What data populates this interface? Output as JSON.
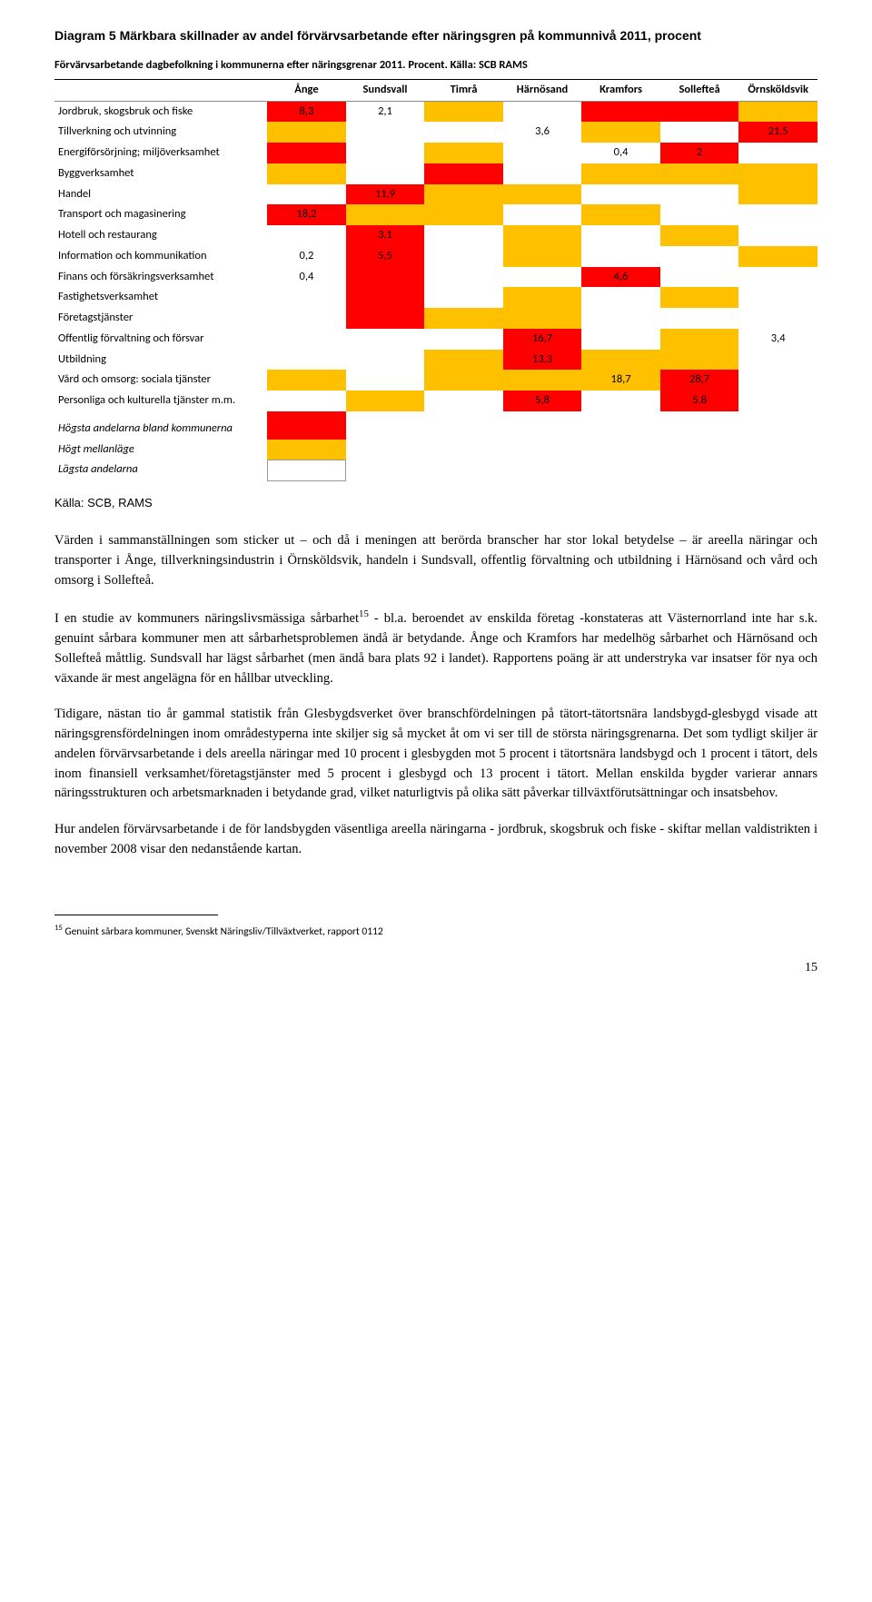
{
  "diagram": {
    "title": "Diagram 5 Märkbara skillnader av andel förvärvsarbetande efter näringsgren på kommunnivå 2011, procent",
    "caption": "Förvärvsarbetande dagbefolkning i kommunerna efter näringsgrenar 2011. Procent. Källa: SCB RAMS",
    "columns": [
      "",
      "Ånge",
      "Sundsvall",
      "Timrå",
      "Härnösand",
      "Kramfors",
      "Sollefteå",
      "Örnsköldsvik"
    ],
    "colors": {
      "red": "#ff0000",
      "orange": "#ffc000",
      "white": "#ffffff"
    },
    "rows": [
      {
        "label": "Jordbruk, skogsbruk och fiske",
        "cells": [
          {
            "v": "8,3",
            "c": "red"
          },
          {
            "v": "2,1",
            "c": "white"
          },
          {
            "v": "",
            "c": "orange"
          },
          {
            "v": "",
            "c": "white"
          },
          {
            "v": "",
            "c": "red"
          },
          {
            "v": "",
            "c": "red"
          },
          {
            "v": "",
            "c": "orange"
          }
        ]
      },
      {
        "label": "Tillverkning och utvinning",
        "cells": [
          {
            "v": "",
            "c": "orange"
          },
          {
            "v": "",
            "c": "white"
          },
          {
            "v": "",
            "c": "white"
          },
          {
            "v": "3,6",
            "c": "white"
          },
          {
            "v": "",
            "c": "orange"
          },
          {
            "v": "",
            "c": "white"
          },
          {
            "v": "21,5",
            "c": "red"
          }
        ]
      },
      {
        "label": "Energiförsörjning; miljöverksamhet",
        "cells": [
          {
            "v": "",
            "c": "red"
          },
          {
            "v": "",
            "c": "white"
          },
          {
            "v": "",
            "c": "orange"
          },
          {
            "v": "",
            "c": "white"
          },
          {
            "v": "0,4",
            "c": "white"
          },
          {
            "v": "2",
            "c": "red"
          },
          {
            "v": "",
            "c": "white"
          }
        ]
      },
      {
        "label": "Byggverksamhet",
        "cells": [
          {
            "v": "",
            "c": "orange"
          },
          {
            "v": "",
            "c": "white"
          },
          {
            "v": "",
            "c": "red"
          },
          {
            "v": "",
            "c": "white"
          },
          {
            "v": "",
            "c": "orange"
          },
          {
            "v": "",
            "c": "orange"
          },
          {
            "v": "",
            "c": "orange"
          }
        ]
      },
      {
        "label": "Handel",
        "cells": [
          {
            "v": "",
            "c": "white"
          },
          {
            "v": "11,9",
            "c": "red"
          },
          {
            "v": "",
            "c": "orange"
          },
          {
            "v": "",
            "c": "orange"
          },
          {
            "v": "",
            "c": "white"
          },
          {
            "v": "",
            "c": "white"
          },
          {
            "v": "",
            "c": "orange"
          }
        ]
      },
      {
        "label": "Transport och magasinering",
        "cells": [
          {
            "v": "18,2",
            "c": "red"
          },
          {
            "v": "",
            "c": "orange"
          },
          {
            "v": "",
            "c": "orange"
          },
          {
            "v": "",
            "c": "white"
          },
          {
            "v": "",
            "c": "orange"
          },
          {
            "v": "",
            "c": "white"
          },
          {
            "v": "",
            "c": "white"
          }
        ]
      },
      {
        "label": "Hotell och restaurang",
        "cells": [
          {
            "v": "",
            "c": "white"
          },
          {
            "v": "3,1",
            "c": "red"
          },
          {
            "v": "",
            "c": "white"
          },
          {
            "v": "",
            "c": "orange"
          },
          {
            "v": "",
            "c": "white"
          },
          {
            "v": "",
            "c": "orange"
          },
          {
            "v": "",
            "c": "white"
          }
        ]
      },
      {
        "label": "Information och kommunikation",
        "cells": [
          {
            "v": "0,2",
            "c": "white"
          },
          {
            "v": "5,5",
            "c": "red"
          },
          {
            "v": "",
            "c": "white"
          },
          {
            "v": "",
            "c": "orange"
          },
          {
            "v": "",
            "c": "white"
          },
          {
            "v": "",
            "c": "white"
          },
          {
            "v": "",
            "c": "orange"
          }
        ]
      },
      {
        "label": "Finans och försäkringsverksamhet",
        "cells": [
          {
            "v": "0,4",
            "c": "white"
          },
          {
            "v": "",
            "c": "red"
          },
          {
            "v": "",
            "c": "white"
          },
          {
            "v": "",
            "c": "white"
          },
          {
            "v": "4,6",
            "c": "red"
          },
          {
            "v": "",
            "c": "white"
          },
          {
            "v": "",
            "c": "white"
          }
        ]
      },
      {
        "label": "Fastighetsverksamhet",
        "cells": [
          {
            "v": "",
            "c": "white"
          },
          {
            "v": "",
            "c": "red"
          },
          {
            "v": "",
            "c": "white"
          },
          {
            "v": "",
            "c": "orange"
          },
          {
            "v": "",
            "c": "white"
          },
          {
            "v": "",
            "c": "orange"
          },
          {
            "v": "",
            "c": "white"
          }
        ]
      },
      {
        "label": "Företagstjänster",
        "cells": [
          {
            "v": "",
            "c": "white"
          },
          {
            "v": "",
            "c": "red"
          },
          {
            "v": "",
            "c": "orange"
          },
          {
            "v": "",
            "c": "orange"
          },
          {
            "v": "",
            "c": "white"
          },
          {
            "v": "",
            "c": "white"
          },
          {
            "v": "",
            "c": "white"
          }
        ]
      },
      {
        "label": "Offentlig förvaltning och försvar",
        "cells": [
          {
            "v": "",
            "c": "white"
          },
          {
            "v": "",
            "c": "white"
          },
          {
            "v": "",
            "c": "white"
          },
          {
            "v": "16,7",
            "c": "red"
          },
          {
            "v": "",
            "c": "white"
          },
          {
            "v": "",
            "c": "orange"
          },
          {
            "v": "3,4",
            "c": "white"
          }
        ]
      },
      {
        "label": "Utbildning",
        "cells": [
          {
            "v": "",
            "c": "white"
          },
          {
            "v": "",
            "c": "white"
          },
          {
            "v": "",
            "c": "orange"
          },
          {
            "v": "13,3",
            "c": "red"
          },
          {
            "v": "",
            "c": "orange"
          },
          {
            "v": "",
            "c": "orange"
          },
          {
            "v": "",
            "c": "white"
          }
        ]
      },
      {
        "label": "Vård och omsorg: sociala tjänster",
        "cells": [
          {
            "v": "",
            "c": "orange"
          },
          {
            "v": "",
            "c": "white"
          },
          {
            "v": "",
            "c": "orange"
          },
          {
            "v": "",
            "c": "orange"
          },
          {
            "v": "18,7",
            "c": "orange"
          },
          {
            "v": "28,7",
            "c": "red"
          },
          {
            "v": "",
            "c": "white"
          }
        ]
      },
      {
        "label": "Personliga och kulturella tjänster m.m.",
        "cells": [
          {
            "v": "",
            "c": "white"
          },
          {
            "v": "",
            "c": "orange"
          },
          {
            "v": "",
            "c": "white"
          },
          {
            "v": "5,8",
            "c": "red"
          },
          {
            "v": "",
            "c": "white"
          },
          {
            "v": "5,8",
            "c": "red"
          },
          {
            "v": "",
            "c": "white"
          }
        ]
      }
    ],
    "legend": [
      {
        "label": "Högsta andelarna bland kommunerna",
        "color": "red"
      },
      {
        "label": "Högt mellanläge",
        "color": "orange"
      },
      {
        "label": "Lägsta andelarna",
        "color": "white"
      }
    ]
  },
  "source": "Källa: SCB, RAMS",
  "paragraphs": {
    "p1": "Värden i sammanställningen som sticker ut – och då i meningen att berörda branscher har stor lokal betydelse – är areella näringar och transporter i Ånge, tillverkningsindustrin i Örnsköldsvik, handeln i Sundsvall, offentlig förvaltning och utbildning i Härnösand och vård och omsorg i Sollefteå.",
    "p2a": "I en studie av kommuners näringslivsmässiga sårbarhet",
    "p2sup": "15",
    "p2b": " - bl.a. beroendet av enskilda företag -konstateras att Västernorrland inte har s.k. genuint sårbara kommuner men att sårbarhetsproblemen ändå är betydande. Ånge och Kramfors har medelhög sårbarhet och Härnösand och Sollefteå måttlig. Sundsvall har lägst sårbarhet (men ändå bara plats 92 i landet). Rapportens poäng är att understryka var insatser för nya och växande är mest angelägna för en hållbar utveckling.",
    "p3": "Tidigare, nästan tio år gammal statistik från Glesbygdsverket över branschfördelningen på tätort-tätortsnära landsbygd-glesbygd visade att näringsgrensfördelningen inom områdestyperna inte skiljer sig så mycket åt om vi ser till de största näringsgrenarna. Det som tydligt skiljer är andelen förvärvsarbetande i dels areella näringar med 10 procent i glesbygden mot 5 procent i tätortsnära landsbygd och 1 procent i tätort, dels inom finansiell verksamhet/företagstjänster med 5 procent i glesbygd och 13 procent i tätort. Mellan enskilda bygder varierar annars näringsstrukturen och arbetsmarknaden i betydande grad, vilket naturligtvis på olika sätt påverkar tillväxtförutsättningar och insatsbehov.",
    "p4": "Hur andelen förvärvsarbetande i de för landsbygden väsentliga areella näringarna - jordbruk, skogsbruk och fiske - skiftar mellan valdistrikten i november 2008 visar den nedanstående kartan."
  },
  "footnote": {
    "num": "15",
    "text": " Genuint sårbara kommuner, Svenskt Näringsliv/Tillväxtverket, rapport 0112"
  },
  "page_number": "15"
}
